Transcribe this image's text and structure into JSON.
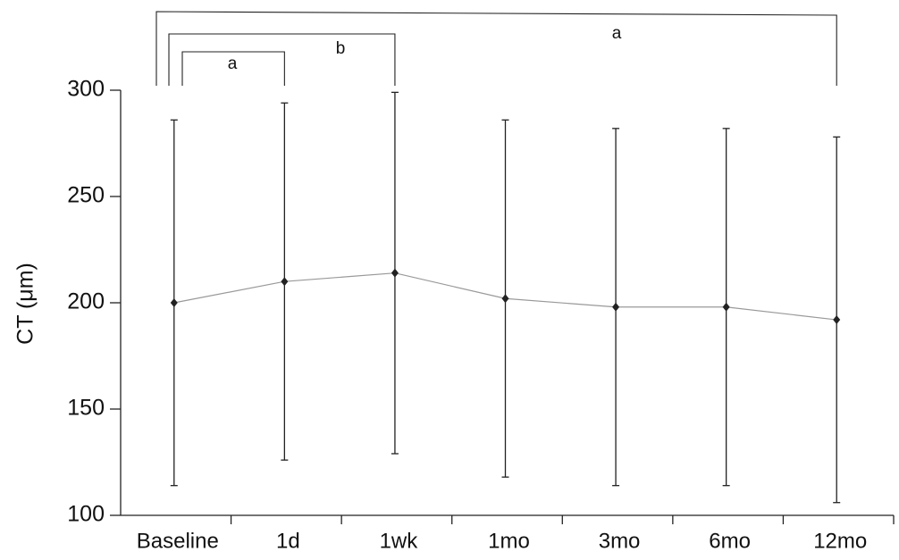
{
  "chart_data": {
    "type": "line",
    "y_label": "CT (μm)",
    "categories": [
      "Baseline",
      "1d",
      "1wk",
      "1mo",
      "3mo",
      "6mo",
      "12mo"
    ],
    "values": [
      200,
      210,
      214,
      202,
      198,
      198,
      192
    ],
    "errors": [
      86,
      84,
      85,
      84,
      84,
      84,
      86
    ],
    "line_color": "#999999",
    "marker_color": "#222222",
    "ylim": [
      100,
      300
    ],
    "yticks": [
      100,
      150,
      200,
      250,
      300
    ],
    "annotations": [
      "a",
      "b",
      "a"
    ]
  }
}
